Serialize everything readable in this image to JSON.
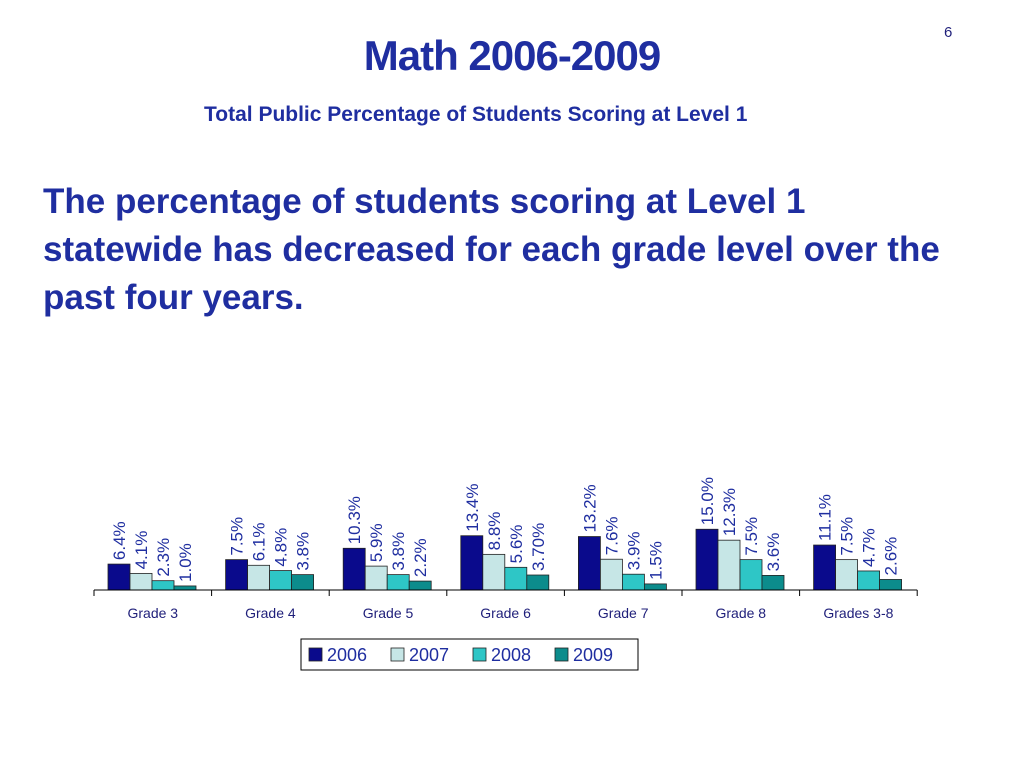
{
  "page_number": "6",
  "title": "Math 2006-2009",
  "subtitle": "Total Public Percentage of Students Scoring at Level 1",
  "body_text": "The percentage of students scoring at Level 1 statewide has decreased for each grade level over the past four years.",
  "colors": {
    "title": "#1f2ea0",
    "series_2006": "#0a0a8c",
    "series_2007": "#c6e6e6",
    "series_2008": "#2ec6c6",
    "series_2009": "#0c8c8c"
  },
  "chart_data": {
    "type": "bar",
    "categories": [
      "Grade 3",
      "Grade 4",
      "Grade 5",
      "Grade 6",
      "Grade 7",
      "Grade 8",
      "Grades 3-8"
    ],
    "series": [
      {
        "name": "2006",
        "values": [
          6.4,
          7.5,
          10.3,
          13.4,
          13.2,
          15.0,
          11.1
        ],
        "labels": [
          "6.4%",
          "7.5%",
          "10.3%",
          "13.4%",
          "13.2%",
          "15.0%",
          "11.1%"
        ]
      },
      {
        "name": "2007",
        "values": [
          4.1,
          6.1,
          5.9,
          8.8,
          7.6,
          12.3,
          7.5
        ],
        "labels": [
          "4.1%",
          "6.1%",
          "5.9%",
          "8.8%",
          "7.6%",
          "12.3%",
          "7.5%"
        ]
      },
      {
        "name": "2008",
        "values": [
          2.3,
          4.8,
          3.8,
          5.6,
          3.9,
          7.5,
          4.7
        ],
        "labels": [
          "2.3%",
          "4.8%",
          "3.8%",
          "5.6%",
          "3.9%",
          "7.5%",
          "4.7%"
        ]
      },
      {
        "name": "2009",
        "values": [
          1.0,
          3.8,
          2.2,
          3.7,
          1.5,
          3.6,
          2.6
        ],
        "labels": [
          "1.0%",
          "3.8%",
          "2.2%",
          "3.70%",
          "1.5%",
          "3.6%",
          "2.6%"
        ]
      }
    ],
    "ylim": [
      0,
      15
    ],
    "grid": false,
    "legend": "bottom"
  }
}
